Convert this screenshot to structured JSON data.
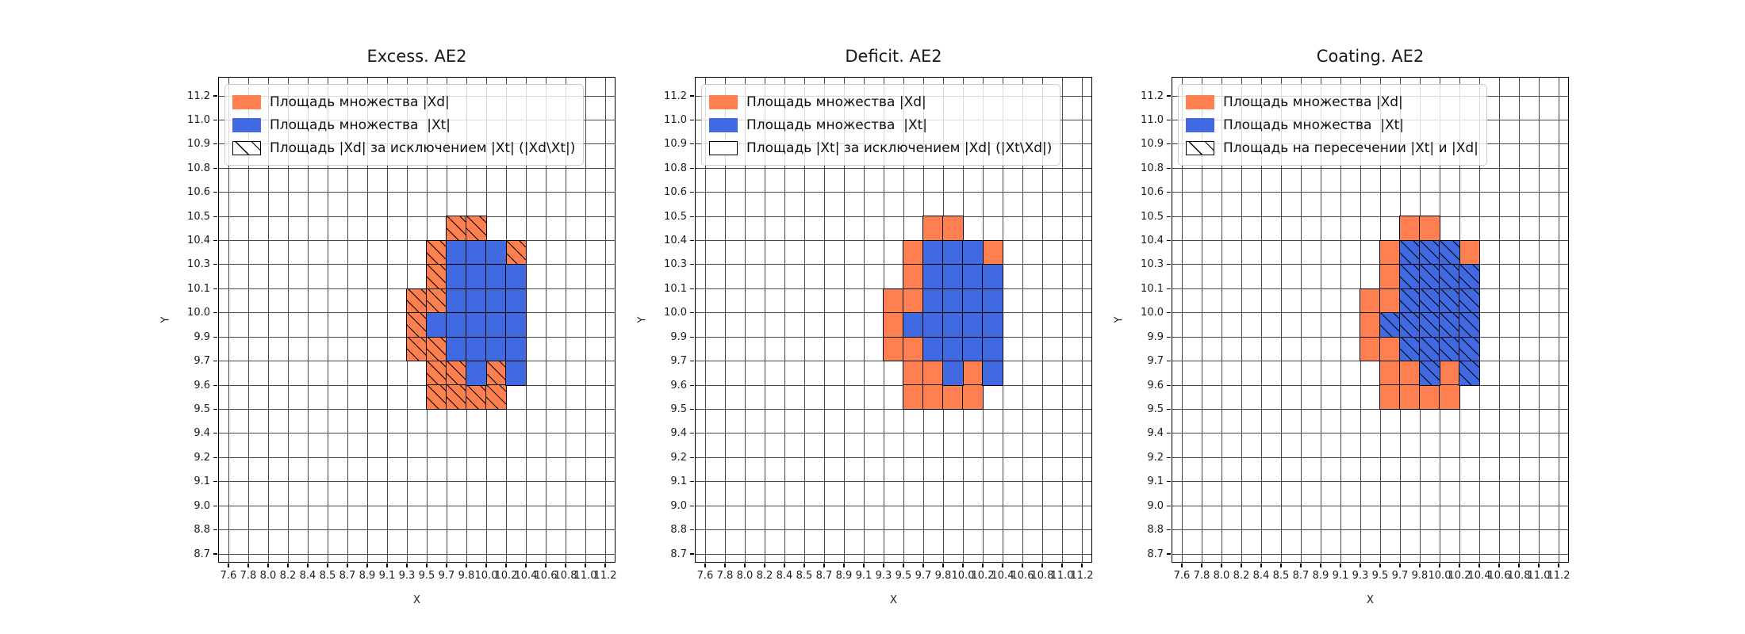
{
  "figure": {
    "background": "#ffffff"
  },
  "colors": {
    "xd_fill": "#FF7F50",
    "xt_fill": "#4169E1",
    "cell_edge": "#000000",
    "grid_line": "#484848",
    "spine": "#000000",
    "legend_border": "#cccccc",
    "legend_background": "rgba(255,255,255,0.8)",
    "text": "#1a1a1a"
  },
  "subplots": [
    {
      "title": "Excess. AE2",
      "xlabel": "X",
      "ylabel": "Y",
      "hatch_cells": "xd",
      "legend": [
        {
          "swatch": "orange",
          "label": "Площадь множества |Xd|"
        },
        {
          "swatch": "blue",
          "label": "Площадь множества  |Xt|"
        },
        {
          "swatch": "hatch",
          "label": "Площадь |Xd| за исключением |Xt| (|Xd\\Xt|)"
        }
      ]
    },
    {
      "title": "Deficit. AE2",
      "xlabel": "X",
      "ylabel": "Y",
      "hatch_cells": "none",
      "legend": [
        {
          "swatch": "orange",
          "label": "Площадь множества |Xd|"
        },
        {
          "swatch": "blue",
          "label": "Площадь множества  |Xt|"
        },
        {
          "swatch": "empty",
          "label": "Площадь |Xt| за исключением |Xd| (|Xt\\Xd|)"
        }
      ]
    },
    {
      "title": "Coating. AE2",
      "xlabel": "X",
      "ylabel": "Y",
      "hatch_cells": "xt",
      "legend": [
        {
          "swatch": "orange",
          "label": "Площадь множества |Xd|"
        },
        {
          "swatch": "blue",
          "label": "Площадь множества  |Xt|"
        },
        {
          "swatch": "hatch",
          "label": "Площадь на пересечении |Xt| и |Xd|"
        }
      ]
    }
  ],
  "chart_data": {
    "type": "heatmap",
    "title": [
      "Excess. AE2",
      "Deficit. AE2",
      "Coating. AE2"
    ],
    "xlabel": "X",
    "ylabel": "Y",
    "grid": "on",
    "legend_position": "upper left",
    "x_tick_labels": [
      "7.6",
      "7.8",
      "8.0",
      "8.2",
      "8.4",
      "8.5",
      "8.7",
      "8.9",
      "9.1",
      "9.3",
      "9.5",
      "9.7",
      "9.8",
      "10.0",
      "10.2",
      "10.4",
      "10.6",
      "10.8",
      "11.0",
      "11.2"
    ],
    "y_tick_labels_top_to_bottom": [
      "11.2",
      "11.0",
      "10.9",
      "10.8",
      "10.6",
      "10.5",
      "10.4",
      "10.3",
      "10.1",
      "10.0",
      "9.9",
      "9.7",
      "9.6",
      "9.5",
      "9.4",
      "9.2",
      "9.1",
      "9.0",
      "8.8",
      "8.7"
    ],
    "cells_note": "row,col indices of grid cells counted from top-left tick cell; identical cell sets in all three subplots; hatching marks |Xd\\Xt| in subplot 1, nothing in subplot 2, |Xt|∩|Xd| in subplot 3",
    "cells_xd_orange": [
      [
        5,
        11
      ],
      [
        5,
        12
      ],
      [
        6,
        10
      ],
      [
        6,
        14
      ],
      [
        7,
        10
      ],
      [
        8,
        9
      ],
      [
        8,
        10
      ],
      [
        9,
        9
      ],
      [
        10,
        9
      ],
      [
        10,
        10
      ],
      [
        11,
        10
      ],
      [
        11,
        11
      ],
      [
        11,
        13
      ],
      [
        12,
        10
      ],
      [
        12,
        11
      ],
      [
        12,
        12
      ],
      [
        12,
        13
      ]
    ],
    "cells_xt_blue": [
      [
        6,
        11
      ],
      [
        6,
        12
      ],
      [
        6,
        13
      ],
      [
        7,
        11
      ],
      [
        7,
        12
      ],
      [
        7,
        13
      ],
      [
        7,
        14
      ],
      [
        8,
        11
      ],
      [
        8,
        12
      ],
      [
        8,
        13
      ],
      [
        8,
        14
      ],
      [
        9,
        10
      ],
      [
        9,
        11
      ],
      [
        9,
        12
      ],
      [
        9,
        13
      ],
      [
        9,
        14
      ],
      [
        10,
        11
      ],
      [
        10,
        12
      ],
      [
        10,
        13
      ],
      [
        10,
        14
      ],
      [
        11,
        12
      ],
      [
        11,
        14
      ]
    ],
    "hatched_per_subplot": [
      "xd",
      "none",
      "xt"
    ]
  }
}
